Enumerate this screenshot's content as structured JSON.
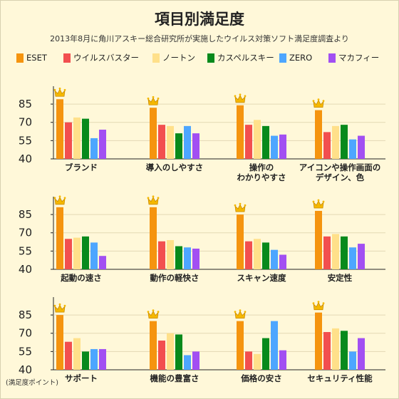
{
  "title": "項目別満足度",
  "subtitle": "2013年8月に角川アスキー総合研究所が実施したウイルス対策ソフト満足度調査より",
  "footnote": "(満足度ポイント)",
  "chart_data": {
    "type": "bar",
    "ylim": [
      40,
      95
    ],
    "yticks": [
      "85",
      "70",
      "55",
      "40"
    ],
    "series": [
      {
        "name": "ESET",
        "color": "#f5940f"
      },
      {
        "name": "ウイルスバスター",
        "color": "#f24f4f"
      },
      {
        "name": "ノートン",
        "color": "#ffe08a"
      },
      {
        "name": "カスペルスキー",
        "color": "#088a1c"
      },
      {
        "name": "ZERO",
        "color": "#4da6ff"
      },
      {
        "name": "マカフィー",
        "color": "#a24ff2"
      }
    ],
    "panels": [
      {
        "label": [
          "ブランド"
        ],
        "values": [
          89,
          70,
          74,
          73,
          57,
          64
        ]
      },
      {
        "label": [
          "導入のしやすさ"
        ],
        "values": [
          82,
          68,
          67,
          61,
          67,
          61
        ]
      },
      {
        "label": [
          "操作の",
          "わかりやすさ"
        ],
        "values": [
          84,
          68,
          72,
          67,
          59,
          60
        ]
      },
      {
        "label": [
          "アイコンや操作画面の",
          "デザイン、色"
        ],
        "values": [
          80,
          62,
          67,
          68,
          56,
          59
        ]
      },
      {
        "label": [
          "起動の速さ"
        ],
        "values": [
          91,
          65,
          66,
          67,
          62,
          51
        ]
      },
      {
        "label": [
          "動作の軽快さ"
        ],
        "values": [
          91,
          63,
          64,
          59,
          58,
          57
        ]
      },
      {
        "label": [
          "スキャン速度"
        ],
        "values": [
          85,
          63,
          65,
          62,
          56,
          52
        ]
      },
      {
        "label": [
          "安定性"
        ],
        "values": [
          88,
          67,
          69,
          67,
          58,
          61
        ]
      },
      {
        "label": [
          "サポート"
        ],
        "values": [
          85,
          63,
          66,
          55,
          57,
          57
        ]
      },
      {
        "label": [
          "機能の豊富さ"
        ],
        "values": [
          80,
          64,
          70,
          69,
          52,
          55
        ]
      },
      {
        "label": [
          "価格の安さ"
        ],
        "values": [
          80,
          55,
          53,
          66,
          80,
          56
        ]
      },
      {
        "label": [
          "セキュリティ性能"
        ],
        "values": [
          87,
          71,
          74,
          72,
          55,
          66
        ]
      }
    ]
  }
}
